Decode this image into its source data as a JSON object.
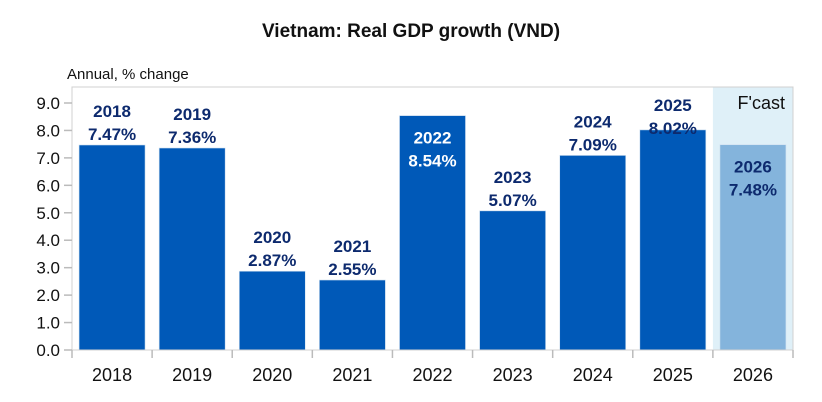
{
  "chart_data": {
    "type": "bar",
    "title": "Vietnam: Real GDP growth (VND)",
    "ylabel": "Annual, % change",
    "xlabel": "",
    "categories": [
      "2018",
      "2019",
      "2020",
      "2021",
      "2022",
      "2023",
      "2024",
      "2025",
      "2026"
    ],
    "values": [
      7.47,
      7.36,
      2.87,
      2.55,
      8.54,
      5.07,
      7.09,
      8.02,
      7.48
    ],
    "data_labels": [
      "7.47%",
      "7.36%",
      "2.87%",
      "2.55%",
      "8.54%",
      "5.07%",
      "7.09%",
      "8.02%",
      "7.48%"
    ],
    "label_inside": [
      false,
      false,
      false,
      false,
      true,
      false,
      false,
      false,
      true
    ],
    "forecast": [
      false,
      false,
      false,
      false,
      false,
      false,
      false,
      false,
      true
    ],
    "forecast_label": "F'cast",
    "ylim": [
      0,
      9
    ],
    "yticks": [
      "0.0",
      "1.0",
      "2.0",
      "3.0",
      "4.0",
      "5.0",
      "6.0",
      "7.0",
      "8.0",
      "9.0"
    ],
    "grid": false,
    "colors": {
      "bar": "#0059b8",
      "forecast_bar": "#84b4dc",
      "forecast_band": "#dff0f8",
      "label": "#0d2a6e",
      "label_inside_actual": "#ffffff"
    }
  }
}
